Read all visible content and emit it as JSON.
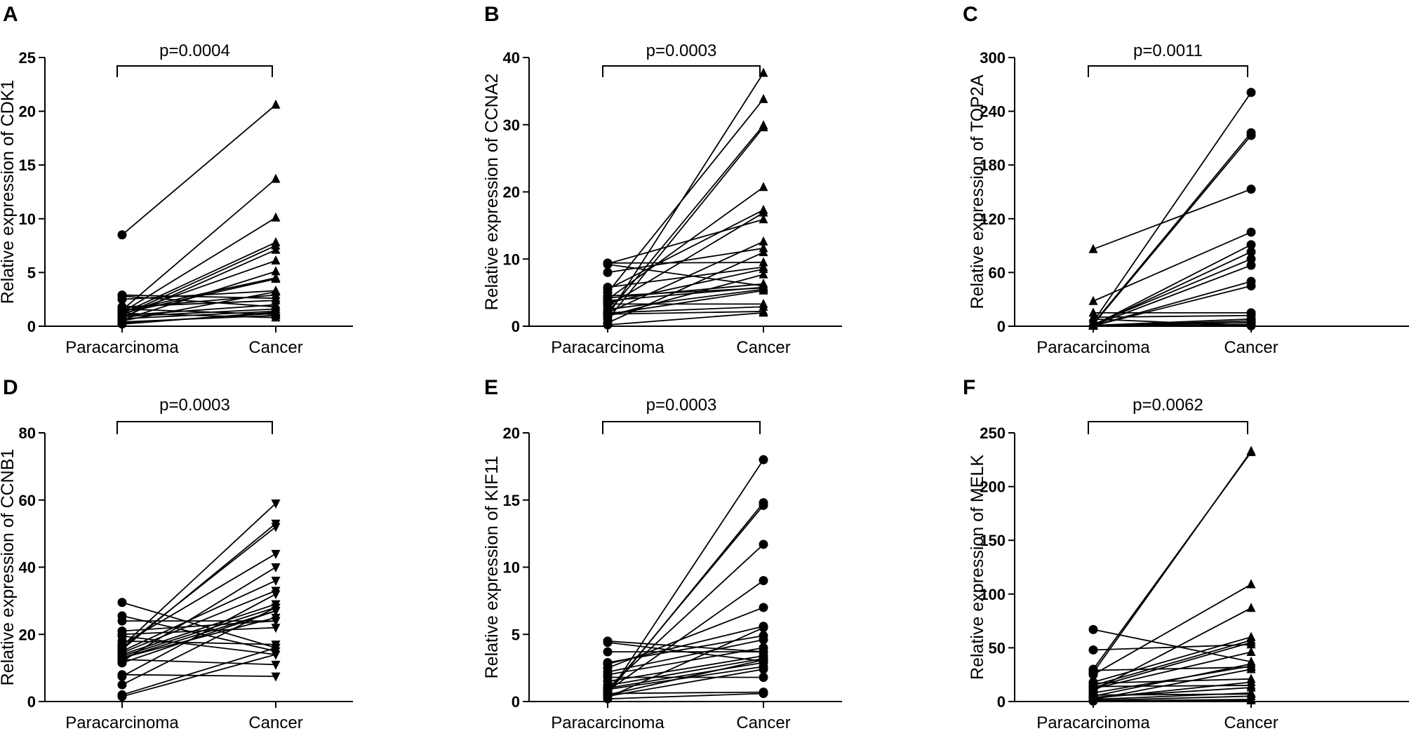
{
  "figure": {
    "line_color": "#000000",
    "background": "#ffffff"
  },
  "chart_data": [
    {
      "panel": "A",
      "type": "line",
      "title": "",
      "ylabel": "Relative expression of CDK1",
      "xlabel": "",
      "categories": [
        "Paracarcinoma",
        "Cancer"
      ],
      "p_value": "p=0.0004",
      "ylim": [
        0,
        25
      ],
      "yticks": [
        0,
        5,
        10,
        15,
        20,
        25
      ],
      "markers": [
        "circle",
        "triangle-up"
      ],
      "pairs": [
        [
          8.5,
          20.6
        ],
        [
          1.5,
          13.7
        ],
        [
          1.3,
          10.1
        ],
        [
          1.2,
          7.8
        ],
        [
          1.0,
          7.5
        ],
        [
          0.8,
          7.1
        ],
        [
          1.1,
          6.1
        ],
        [
          0.6,
          5.1
        ],
        [
          1.4,
          4.5
        ],
        [
          1.2,
          4.4
        ],
        [
          2.9,
          2.6
        ],
        [
          2.8,
          1.8
        ],
        [
          2.5,
          3.3
        ],
        [
          1.7,
          2.9
        ],
        [
          1.8,
          2.4
        ],
        [
          0.5,
          3.2
        ],
        [
          1.0,
          2.0
        ],
        [
          0.9,
          1.6
        ],
        [
          0.7,
          1.4
        ],
        [
          0.3,
          1.2
        ],
        [
          0.4,
          1.0
        ],
        [
          1.2,
          0.8
        ],
        [
          0.2,
          1.3
        ],
        [
          1.6,
          1.1
        ]
      ]
    },
    {
      "panel": "B",
      "type": "line",
      "title": "",
      "ylabel": "Relative expression of CCNA2",
      "xlabel": "",
      "categories": [
        "Paracarcinoma",
        "Cancer"
      ],
      "p_value": "p=0.0003",
      "ylim": [
        0,
        40
      ],
      "yticks": [
        0,
        10,
        20,
        30,
        40
      ],
      "markers": [
        "circle",
        "triangle-up"
      ],
      "pairs": [
        [
          1.5,
          37.7
        ],
        [
          5.0,
          33.8
        ],
        [
          2.0,
          29.9
        ],
        [
          1.0,
          29.6
        ],
        [
          4.0,
          20.7
        ],
        [
          5.5,
          17.3
        ],
        [
          9.3,
          15.9
        ],
        [
          3.0,
          16.9
        ],
        [
          2.0,
          12.6
        ],
        [
          8.0,
          11.6
        ],
        [
          0.5,
          11.0
        ],
        [
          9.4,
          9.5
        ],
        [
          5.8,
          8.8
        ],
        [
          3.5,
          8.5
        ],
        [
          1.5,
          7.7
        ],
        [
          4.2,
          6.3
        ],
        [
          9.2,
          6.0
        ],
        [
          3.8,
          5.8
        ],
        [
          2.5,
          5.5
        ],
        [
          1.8,
          5.3
        ],
        [
          4.5,
          5.7
        ],
        [
          3.3,
          3.3
        ],
        [
          2.0,
          2.9
        ],
        [
          1.8,
          2.2
        ],
        [
          0.2,
          2.0
        ]
      ]
    },
    {
      "panel": "C",
      "type": "line",
      "title": "",
      "ylabel": "Relative expression of TOP2A",
      "xlabel": "",
      "categories": [
        "Paracarcinoma",
        "Cancer"
      ],
      "p_value": "p=0.0011",
      "ylim": [
        0,
        300
      ],
      "yticks": [
        0,
        60,
        120,
        180,
        240,
        300
      ],
      "markers": [
        "triangle-up",
        "circle"
      ],
      "pairs": [
        [
          86,
          153
        ],
        [
          28,
          105
        ],
        [
          5,
          261
        ],
        [
          3,
          216
        ],
        [
          2,
          213
        ],
        [
          1,
          91
        ],
        [
          1,
          83
        ],
        [
          2,
          75
        ],
        [
          1,
          68
        ],
        [
          0.5,
          50
        ],
        [
          0.5,
          45
        ],
        [
          15,
          15
        ],
        [
          10,
          12
        ],
        [
          1,
          8
        ],
        [
          0.5,
          6
        ],
        [
          1,
          4
        ],
        [
          0.5,
          2
        ],
        [
          0.3,
          1
        ],
        [
          8,
          0.5
        ]
      ]
    },
    {
      "panel": "D",
      "type": "line",
      "title": "",
      "ylabel": "Relative expression of CCNB1",
      "xlabel": "",
      "categories": [
        "Paracarcinoma",
        "Cancer"
      ],
      "p_value": "p=0.0003",
      "ylim": [
        0,
        80
      ],
      "yticks": [
        0,
        20,
        40,
        60,
        80
      ],
      "markers": [
        "circle",
        "triangle-down"
      ],
      "pairs": [
        [
          29.5,
          16
        ],
        [
          25.5,
          15
        ],
        [
          24,
          24
        ],
        [
          21,
          24
        ],
        [
          20,
          22
        ],
        [
          19.5,
          14
        ],
        [
          18,
          17
        ],
        [
          17,
          44
        ],
        [
          16.5,
          59
        ],
        [
          16,
          52
        ],
        [
          15.5,
          53
        ],
        [
          15,
          36
        ],
        [
          14.5,
          33
        ],
        [
          14,
          29
        ],
        [
          13.5,
          28
        ],
        [
          13,
          27
        ],
        [
          13,
          25
        ],
        [
          12.5,
          11
        ],
        [
          12,
          40
        ],
        [
          11.5,
          27
        ],
        [
          8,
          7.5
        ],
        [
          7.5,
          32
        ],
        [
          5,
          28
        ],
        [
          2,
          16
        ],
        [
          1.5,
          14
        ]
      ]
    },
    {
      "panel": "E",
      "type": "line",
      "title": "",
      "ylabel": "Relative expression of KIF11",
      "xlabel": "",
      "categories": [
        "Paracarcinoma",
        "Cancer"
      ],
      "p_value": "p=0.0003",
      "ylim": [
        0,
        20
      ],
      "yticks": [
        0,
        5,
        10,
        15,
        20
      ],
      "markers": [
        "circle",
        "circle"
      ],
      "pairs": [
        [
          0.5,
          18
        ],
        [
          0.6,
          14.8
        ],
        [
          0.7,
          14.6
        ],
        [
          1.0,
          11.7
        ],
        [
          0.8,
          9.0
        ],
        [
          2.5,
          7.0
        ],
        [
          2.8,
          5.6
        ],
        [
          0.3,
          5.5
        ],
        [
          4.5,
          3.7
        ],
        [
          4.4,
          3.0
        ],
        [
          3.7,
          3.7
        ],
        [
          2.9,
          4.9
        ],
        [
          2.2,
          4.6
        ],
        [
          2.0,
          4.0
        ],
        [
          1.8,
          1.8
        ],
        [
          1.5,
          3.4
        ],
        [
          1.2,
          3.2
        ],
        [
          1.0,
          2.9
        ],
        [
          0.9,
          2.6
        ],
        [
          0.4,
          2.4
        ],
        [
          0.5,
          3.1
        ],
        [
          0.6,
          0.7
        ],
        [
          0.2,
          0.6
        ]
      ]
    },
    {
      "panel": "F",
      "type": "line",
      "title": "",
      "ylabel": "Relative expression of MELK",
      "xlabel": "",
      "categories": [
        "Paracarcinoma",
        "Cancer"
      ],
      "p_value": "p=0.0062",
      "ylim": [
        0,
        250
      ],
      "yticks": [
        0,
        50,
        100,
        150,
        200,
        250
      ],
      "markers": [
        "circle",
        "triangle-up"
      ],
      "pairs": [
        [
          27,
          233
        ],
        [
          30,
          232
        ],
        [
          25,
          109
        ],
        [
          10,
          87
        ],
        [
          67,
          37
        ],
        [
          48,
          53
        ],
        [
          29,
          32
        ],
        [
          18,
          60
        ],
        [
          15,
          57
        ],
        [
          13,
          55
        ],
        [
          12,
          46
        ],
        [
          5,
          35
        ],
        [
          8,
          33
        ],
        [
          17,
          21
        ],
        [
          3,
          18
        ],
        [
          14,
          15
        ],
        [
          2,
          8
        ],
        [
          6,
          7
        ],
        [
          1,
          5
        ],
        [
          0.5,
          2
        ],
        [
          0.5,
          1
        ],
        [
          2,
          30
        ],
        [
          4,
          13
        ]
      ]
    }
  ]
}
